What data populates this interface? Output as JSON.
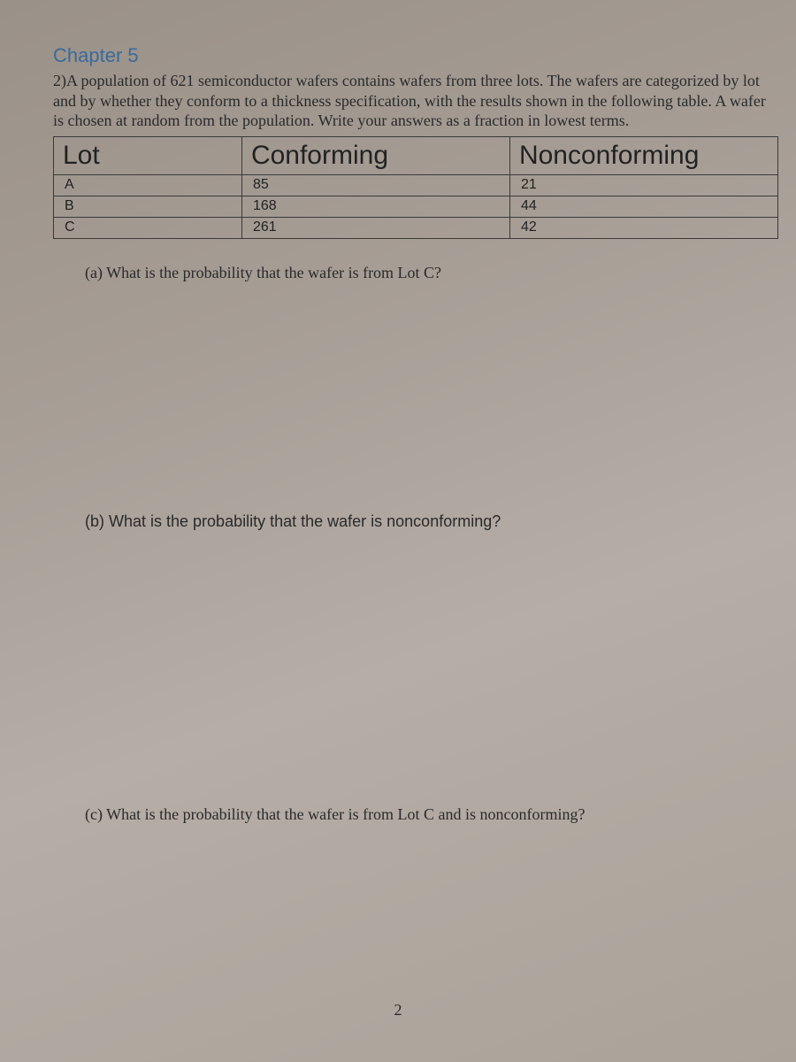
{
  "chapter_title": "Chapter 5",
  "problem_intro": "2)A population of 621 semiconductor wafers contains wafers from three lots. The wafers are categorized by lot and by whether they conform to a thickness specification, with the results shown in the following table. A wafer is chosen at random from the population. Write your answers as a fraction in lowest terms.",
  "table": {
    "columns": [
      "Lot",
      "Conforming",
      "Nonconforming"
    ],
    "rows": [
      [
        "A",
        "85",
        "21"
      ],
      [
        "B",
        "168",
        "44"
      ],
      [
        "C",
        "261",
        "42"
      ]
    ],
    "column_widths_pct": [
      26,
      37,
      37
    ],
    "border_color": "#3a3a3a",
    "header_fontsize": 30,
    "cell_fontsize": 16
  },
  "questions": {
    "a": "(a) What is the probability that the wafer is from Lot C?",
    "b": "(b) What is the probability that the wafer is nonconforming?",
    "c": "(c) What is the probability that the wafer is from Lot C and is nonconforming?"
  },
  "page_number": "2",
  "colors": {
    "chapter_heading": "#3a6a9a",
    "body_text": "#2a2a2a",
    "background_gradient": [
      "#9a9188",
      "#a69d95",
      "#b5ada6",
      "#aba399"
    ]
  },
  "typography": {
    "body_font": "Times New Roman",
    "heading_font": "Segoe UI",
    "body_fontsize": 18,
    "chapter_fontsize": 22
  }
}
